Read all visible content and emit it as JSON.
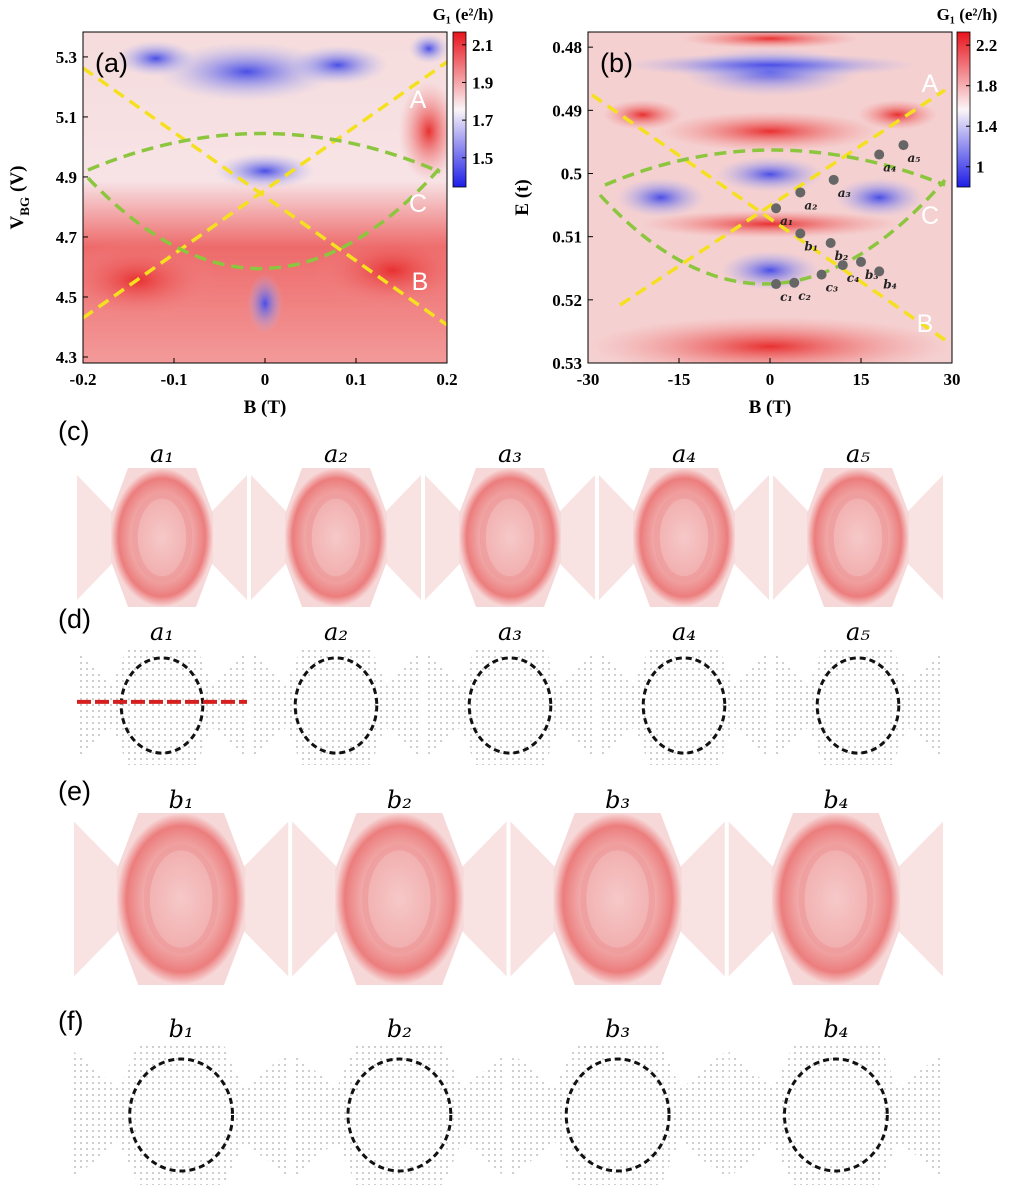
{
  "chart_data": [
    {
      "type": "heatmap",
      "panel_label": "(a)",
      "xlabel": "B (T)",
      "ylabel": "V",
      "ylabel_sub": "BG",
      "ylabel_unit": "(V)",
      "xlim": [
        -0.2,
        0.2
      ],
      "xticks": [
        -0.2,
        -0.1,
        0,
        0.1,
        0.2
      ],
      "ylim": [
        4.28,
        5.383
      ],
      "yticks": [
        4.3,
        4.5,
        4.7,
        4.9,
        5.1,
        5.3
      ],
      "y_reversed": false,
      "colorbar": {
        "title": "G₁ (e²/h)",
        "lim": [
          1.345,
          2.168
        ],
        "ticks": [
          1.5,
          1.7,
          1.9,
          2.1
        ]
      },
      "annotations": [
        "A",
        "C",
        "B"
      ]
    },
    {
      "type": "heatmap",
      "panel_label": "(b)",
      "xlabel": "B (T)",
      "ylabel": "E (t)",
      "xlim": [
        -30,
        30
      ],
      "xticks": [
        -30,
        -15,
        0,
        15,
        30
      ],
      "ylim": [
        0.4776,
        0.53
      ],
      "yticks": [
        0.48,
        0.49,
        0.5,
        0.51,
        0.52,
        0.53
      ],
      "y_reversed": true,
      "colorbar": {
        "title": "G₁ (e²/h)",
        "lim": [
          0.8,
          2.33
        ],
        "ticks": [
          1,
          1.4,
          1.8,
          2.2
        ]
      },
      "annotations": [
        "A",
        "C",
        "B"
      ],
      "points": {
        "labels": [
          "a₁",
          "a₂",
          "a₃",
          "a₄",
          "a₅",
          "b₁",
          "b₂",
          "b₃",
          "b₄",
          "c₁",
          "c₂",
          "c₃",
          "c₄"
        ],
        "x": [
          1,
          5,
          10.5,
          18,
          22,
          5,
          10,
          15,
          18,
          1,
          4,
          8.5,
          12
        ],
        "y": [
          0.5055,
          0.503,
          0.501,
          0.497,
          0.4955,
          0.5095,
          0.511,
          0.514,
          0.5155,
          0.5175,
          0.5173,
          0.516,
          0.5145
        ]
      }
    }
  ],
  "maps": [
    {
      "label": "(c)",
      "kind": "density",
      "items": [
        "a₁",
        "a₂",
        "a₃",
        "a₄",
        "a₅"
      ]
    },
    {
      "label": "(d)",
      "kind": "current",
      "items": [
        "a₁",
        "a₂",
        "a₃",
        "a₄",
        "a₅"
      ]
    },
    {
      "label": "(e)",
      "kind": "density",
      "items": [
        "b₁",
        "b₂",
        "b₃",
        "b₄"
      ]
    },
    {
      "label": "(f)",
      "kind": "current",
      "items": [
        "b₁",
        "b₂",
        "b₃",
        "b₄"
      ]
    }
  ]
}
